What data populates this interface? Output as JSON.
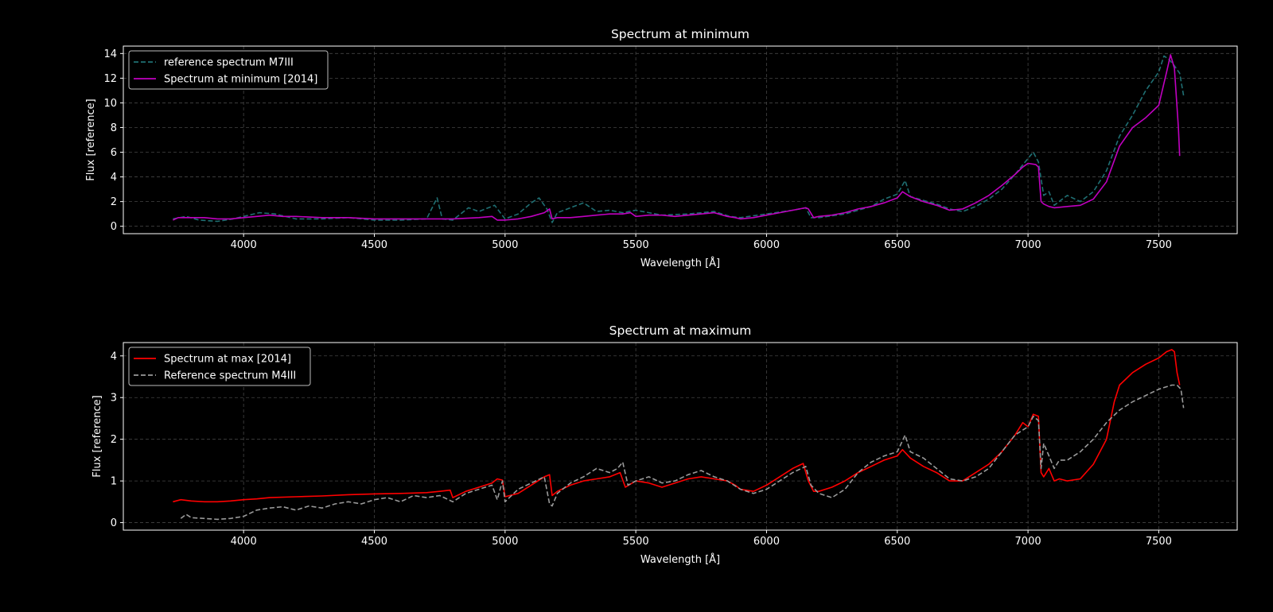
{
  "chart_data": [
    {
      "type": "line",
      "title": "Spectrum at minimum",
      "xlabel": "Wavelength [Å]",
      "ylabel": "Flux [reference]",
      "xlim": [
        3540,
        7800
      ],
      "ylim": [
        -0.6,
        14.6
      ],
      "xticks": [
        4000,
        4500,
        5000,
        5500,
        6000,
        6500,
        7000,
        7500
      ],
      "yticks": [
        0,
        2,
        4,
        6,
        8,
        10,
        12,
        14
      ],
      "grid": true,
      "legend_position": "top-left",
      "series": [
        {
          "name": "reference spectrum  M7III",
          "color": "#1f6f73",
          "dash": "dashed",
          "x": [
            3730,
            3780,
            3830,
            3900,
            3960,
            4000,
            4060,
            4120,
            4200,
            4300,
            4400,
            4500,
            4600,
            4700,
            4740,
            4760,
            4800,
            4860,
            4900,
            4960,
            5000,
            5050,
            5100,
            5130,
            5160,
            5180,
            5200,
            5250,
            5300,
            5350,
            5400,
            5450,
            5500,
            5550,
            5600,
            5700,
            5800,
            5860,
            5900,
            6000,
            6100,
            6150,
            6170,
            6200,
            6300,
            6400,
            6450,
            6500,
            6530,
            6550,
            6600,
            6650,
            6700,
            6750,
            6800,
            6850,
            6900,
            6950,
            7000,
            7020,
            7040,
            7060,
            7080,
            7100,
            7150,
            7200,
            7250,
            7300,
            7350,
            7400,
            7450,
            7500,
            7520,
            7540,
            7560,
            7580,
            7595
          ],
          "y": [
            0.6,
            0.8,
            0.5,
            0.4,
            0.6,
            0.8,
            1.1,
            1.0,
            0.6,
            0.6,
            0.7,
            0.5,
            0.5,
            0.6,
            2.3,
            0.6,
            0.5,
            1.5,
            1.2,
            1.7,
            0.6,
            1.0,
            1.9,
            2.3,
            1.4,
            0.3,
            1.1,
            1.5,
            1.9,
            1.2,
            1.3,
            1.1,
            1.3,
            1.1,
            0.9,
            1.0,
            1.2,
            0.8,
            0.7,
            1.0,
            1.3,
            1.5,
            0.7,
            0.7,
            1.0,
            1.6,
            2.2,
            2.6,
            3.7,
            2.4,
            2.1,
            1.8,
            1.4,
            1.2,
            1.6,
            2.2,
            3.0,
            4.2,
            5.5,
            6.0,
            5.2,
            2.5,
            2.8,
            1.7,
            2.5,
            2.0,
            2.8,
            4.5,
            7.3,
            9.0,
            11.0,
            12.5,
            13.8,
            13.5,
            13.0,
            12.4,
            10.6
          ]
        },
        {
          "name": "Spectrum at minimum [2014]",
          "color": "#c000c0",
          "dash": "solid",
          "x": [
            3730,
            3750,
            3800,
            3850,
            3900,
            3950,
            4000,
            4050,
            4100,
            4150,
            4200,
            4300,
            4400,
            4500,
            4600,
            4700,
            4800,
            4900,
            4950,
            4970,
            5000,
            5050,
            5100,
            5150,
            5170,
            5180,
            5200,
            5250,
            5300,
            5350,
            5400,
            5450,
            5480,
            5500,
            5550,
            5600,
            5650,
            5700,
            5750,
            5800,
            5850,
            5880,
            5900,
            5950,
            6000,
            6050,
            6100,
            6150,
            6160,
            6180,
            6200,
            6250,
            6300,
            6350,
            6400,
            6450,
            6500,
            6520,
            6550,
            6600,
            6650,
            6700,
            6750,
            6800,
            6850,
            6900,
            6950,
            6980,
            7000,
            7030,
            7040,
            7050,
            7060,
            7080,
            7100,
            7150,
            7200,
            7250,
            7300,
            7350,
            7400,
            7450,
            7500,
            7530,
            7545,
            7560,
            7575,
            7580
          ],
          "y": [
            0.5,
            0.7,
            0.7,
            0.7,
            0.6,
            0.6,
            0.7,
            0.8,
            0.9,
            0.8,
            0.8,
            0.7,
            0.7,
            0.6,
            0.6,
            0.6,
            0.6,
            0.7,
            0.8,
            0.5,
            0.5,
            0.6,
            0.8,
            1.1,
            1.4,
            0.6,
            0.7,
            0.7,
            0.8,
            0.9,
            1.0,
            1.0,
            1.1,
            0.8,
            0.9,
            0.9,
            0.8,
            0.9,
            1.0,
            1.1,
            0.8,
            0.7,
            0.6,
            0.7,
            0.9,
            1.1,
            1.3,
            1.5,
            1.4,
            0.7,
            0.8,
            0.9,
            1.1,
            1.4,
            1.6,
            1.9,
            2.3,
            2.8,
            2.4,
            2.0,
            1.7,
            1.3,
            1.4,
            1.9,
            2.5,
            3.3,
            4.2,
            4.8,
            5.1,
            5.0,
            4.8,
            2.0,
            1.8,
            1.6,
            1.5,
            1.6,
            1.7,
            2.2,
            3.6,
            6.5,
            8.0,
            8.8,
            9.8,
            12.5,
            13.9,
            12.8,
            8.0,
            5.7
          ]
        }
      ]
    },
    {
      "type": "line",
      "title": "Spectrum at maximum",
      "xlabel": "Wavelength [Å]",
      "ylabel": "Flux [reference]",
      "xlim": [
        3540,
        7800
      ],
      "ylim": [
        -0.18,
        4.32
      ],
      "xticks": [
        4000,
        4500,
        5000,
        5500,
        6000,
        6500,
        7000,
        7500
      ],
      "yticks": [
        0,
        1,
        2,
        3,
        4
      ],
      "grid": true,
      "legend_position": "top-left",
      "series": [
        {
          "name": "Spectrum at max [2014]",
          "color": "#ff0000",
          "dash": "solid",
          "x": [
            3730,
            3760,
            3800,
            3850,
            3900,
            3950,
            4000,
            4050,
            4100,
            4200,
            4300,
            4400,
            4500,
            4600,
            4700,
            4750,
            4790,
            4800,
            4850,
            4900,
            4950,
            4970,
            4990,
            5000,
            5050,
            5100,
            5150,
            5170,
            5180,
            5200,
            5250,
            5300,
            5350,
            5400,
            5440,
            5460,
            5500,
            5550,
            5600,
            5650,
            5700,
            5750,
            5800,
            5850,
            5880,
            5900,
            5950,
            6000,
            6050,
            6100,
            6140,
            6160,
            6180,
            6200,
            6250,
            6300,
            6350,
            6400,
            6450,
            6500,
            6520,
            6550,
            6600,
            6650,
            6700,
            6750,
            6800,
            6850,
            6900,
            6950,
            6980,
            7000,
            7020,
            7040,
            7050,
            7060,
            7080,
            7100,
            7120,
            7150,
            7200,
            7250,
            7300,
            7330,
            7350,
            7400,
            7450,
            7500,
            7530,
            7550,
            7560,
            7570,
            7580
          ],
          "y": [
            0.5,
            0.55,
            0.52,
            0.5,
            0.5,
            0.52,
            0.55,
            0.57,
            0.6,
            0.62,
            0.64,
            0.67,
            0.69,
            0.7,
            0.72,
            0.75,
            0.78,
            0.6,
            0.75,
            0.85,
            0.95,
            1.05,
            1.02,
            0.62,
            0.7,
            0.9,
            1.1,
            1.15,
            0.65,
            0.75,
            0.9,
            1.0,
            1.05,
            1.1,
            1.2,
            0.85,
            1.0,
            0.95,
            0.85,
            0.95,
            1.05,
            1.1,
            1.05,
            1.0,
            0.9,
            0.8,
            0.75,
            0.9,
            1.1,
            1.3,
            1.42,
            1.0,
            0.75,
            0.75,
            0.85,
            1.0,
            1.2,
            1.35,
            1.5,
            1.6,
            1.75,
            1.55,
            1.35,
            1.2,
            1.0,
            1.0,
            1.2,
            1.4,
            1.7,
            2.1,
            2.4,
            2.3,
            2.6,
            2.55,
            1.2,
            1.1,
            1.3,
            1.0,
            1.05,
            1.0,
            1.05,
            1.4,
            2.0,
            2.9,
            3.3,
            3.6,
            3.8,
            3.95,
            4.1,
            4.15,
            4.1,
            3.6,
            3.3
          ]
        },
        {
          "name": "Reference spectrum M4III",
          "color": "#9a9a9a",
          "dash": "dashed",
          "x": [
            3760,
            3780,
            3800,
            3850,
            3900,
            3950,
            4000,
            4050,
            4100,
            4150,
            4200,
            4250,
            4300,
            4350,
            4400,
            4450,
            4500,
            4550,
            4600,
            4650,
            4700,
            4750,
            4800,
            4850,
            4900,
            4950,
            4970,
            4990,
            5000,
            5050,
            5100,
            5150,
            5170,
            5180,
            5200,
            5250,
            5300,
            5350,
            5400,
            5430,
            5450,
            5470,
            5500,
            5550,
            5600,
            5650,
            5700,
            5750,
            5800,
            5850,
            5900,
            5950,
            6000,
            6050,
            6100,
            6150,
            6170,
            6200,
            6250,
            6300,
            6350,
            6400,
            6450,
            6500,
            6530,
            6550,
            6600,
            6650,
            6700,
            6750,
            6800,
            6850,
            6900,
            6950,
            7000,
            7020,
            7040,
            7050,
            7060,
            7080,
            7100,
            7120,
            7150,
            7200,
            7250,
            7300,
            7350,
            7400,
            7450,
            7500,
            7550,
            7570,
            7585,
            7595
          ],
          "y": [
            0.1,
            0.2,
            0.12,
            0.1,
            0.08,
            0.1,
            0.15,
            0.3,
            0.35,
            0.38,
            0.3,
            0.4,
            0.35,
            0.45,
            0.5,
            0.45,
            0.55,
            0.6,
            0.5,
            0.65,
            0.6,
            0.65,
            0.5,
            0.7,
            0.8,
            0.9,
            0.55,
            1.0,
            0.5,
            0.8,
            0.95,
            1.1,
            0.45,
            0.4,
            0.7,
            0.95,
            1.1,
            1.3,
            1.2,
            1.3,
            1.45,
            0.9,
            1.0,
            1.1,
            0.95,
            1.0,
            1.15,
            1.25,
            1.1,
            1.0,
            0.8,
            0.7,
            0.8,
            1.0,
            1.2,
            1.35,
            0.9,
            0.7,
            0.6,
            0.8,
            1.2,
            1.45,
            1.6,
            1.7,
            2.1,
            1.7,
            1.55,
            1.3,
            1.05,
            1.0,
            1.1,
            1.3,
            1.7,
            2.1,
            2.3,
            2.55,
            2.45,
            1.3,
            1.9,
            1.6,
            1.3,
            1.5,
            1.5,
            1.7,
            2.0,
            2.4,
            2.7,
            2.9,
            3.05,
            3.2,
            3.3,
            3.3,
            3.2,
            2.75
          ]
        }
      ]
    }
  ]
}
